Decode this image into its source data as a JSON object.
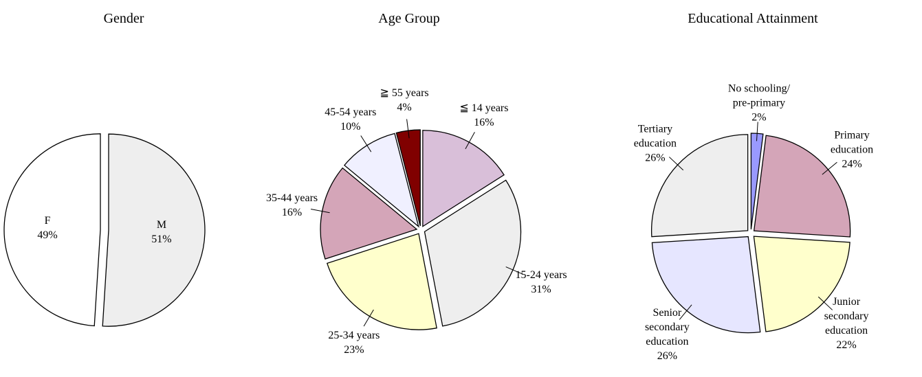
{
  "chart_data": [
    {
      "type": "pie",
      "title": "Gender",
      "labels": "inside",
      "categories": [
        "M",
        "F"
      ],
      "values": [
        51,
        49
      ],
      "value_labels": [
        "51%",
        "49%"
      ],
      "colors": [
        "#eeeeee",
        "#ffffff"
      ]
    },
    {
      "type": "pie",
      "title": "Age Group",
      "labels": "outside",
      "categories": [
        "≦ 14 years",
        "15-24 years",
        "25-34 years",
        "35-44 years",
        "45-54 years",
        "≧ 55 years"
      ],
      "values": [
        16,
        31,
        23,
        16,
        10,
        4
      ],
      "value_labels": [
        "16%",
        "31%",
        "23%",
        "16%",
        "10%",
        "4%"
      ],
      "colors": [
        "#d9bfd9",
        "#eeeeee",
        "#ffffcc",
        "#d4a5b8",
        "#f0f0ff",
        "#800000"
      ]
    },
    {
      "type": "pie",
      "title": "Educational Attainment",
      "labels": "outside",
      "categories": [
        "No schooling/ pre-primary",
        "Primary education",
        "Junior secondary education",
        "Senior secondary education",
        "Tertiary education"
      ],
      "values": [
        2,
        24,
        22,
        26,
        26
      ],
      "value_labels": [
        "2%",
        "24%",
        "22%",
        "26%",
        "26%"
      ],
      "colors": [
        "#9999ff",
        "#d4a5b8",
        "#ffffcc",
        "#e6e6ff",
        "#eeeeee"
      ]
    }
  ]
}
